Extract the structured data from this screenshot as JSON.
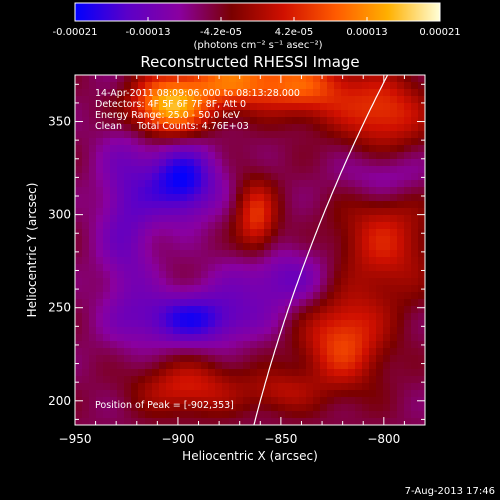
{
  "colorbar": {
    "tick_labels": [
      "-0.00021",
      "-0.00013",
      "-4.2e-05",
      "4.2e-05",
      "0.00013",
      "0.00021"
    ],
    "unit_label": "(photons cm⁻² s⁻¹ asec⁻²)",
    "range": [
      -0.00021,
      0.00021
    ],
    "colors": [
      "#0000ff",
      "#5b00c8",
      "#8a00a0",
      "#7a0000",
      "#d01000",
      "#ff5a00",
      "#ffb000",
      "#ffffd8"
    ]
  },
  "chart_data": {
    "type": "heatmap",
    "title": "Reconstructed RHESSI Image",
    "xlabel": "Heliocentric X (arcsec)",
    "ylabel": "Heliocentric Y (arcsec)",
    "xlim": [
      -950,
      -780
    ],
    "ylim": [
      187,
      375
    ],
    "x_ticks": [
      -950,
      -900,
      -850,
      -800
    ],
    "x_tick_labels": [
      "−950",
      "−900",
      "−850",
      "−800"
    ],
    "y_ticks": [
      200,
      250,
      300,
      350
    ],
    "y_tick_labels": [
      "200",
      "250",
      "300",
      "350"
    ],
    "annotations": [
      "14-Apr-2011 08:09:06.000 to 08:13:28.000",
      "Detectors: 4F 5F 6F 7F 8F, Att 0",
      "Energy Range: 25.0 - 50.0 keV",
      "Clean     Total Counts: 4.76E+03"
    ],
    "peak_label": "Position of Peak = [-902,353]",
    "peak_position": [
      -902,
      353
    ],
    "limb": true,
    "features": [
      {
        "x": -905,
        "y": 358,
        "value": 1.0,
        "sigma_x": 14,
        "sigma_y": 11
      },
      {
        "x": -870,
        "y": 372,
        "value": 0.75,
        "sigma_x": 20,
        "sigma_y": 10
      },
      {
        "x": -835,
        "y": 368,
        "value": 0.5,
        "sigma_x": 15,
        "sigma_y": 12
      },
      {
        "x": -800,
        "y": 355,
        "value": 0.55,
        "sigma_x": 15,
        "sigma_y": 14
      },
      {
        "x": -862,
        "y": 298,
        "value": 0.55,
        "sigma_x": 7,
        "sigma_y": 14
      },
      {
        "x": -800,
        "y": 285,
        "value": 0.45,
        "sigma_x": 16,
        "sigma_y": 22
      },
      {
        "x": -820,
        "y": 232,
        "value": 0.6,
        "sigma_x": 14,
        "sigma_y": 18
      },
      {
        "x": -895,
        "y": 207,
        "value": 0.45,
        "sigma_x": 18,
        "sigma_y": 10
      },
      {
        "x": -850,
        "y": 205,
        "value": 0.3,
        "sigma_x": 12,
        "sigma_y": 8
      },
      {
        "x": -898,
        "y": 318,
        "value": -0.7,
        "sigma_x": 12,
        "sigma_y": 14
      },
      {
        "x": -893,
        "y": 244,
        "value": -0.6,
        "sigma_x": 20,
        "sigma_y": 10
      },
      {
        "x": -850,
        "y": 265,
        "value": -0.35,
        "sigma_x": 20,
        "sigma_y": 12
      },
      {
        "x": -925,
        "y": 300,
        "value": -0.35,
        "sigma_x": 10,
        "sigma_y": 40
      },
      {
        "x": -800,
        "y": 320,
        "value": -0.3,
        "sigma_x": 15,
        "sigma_y": 10
      }
    ]
  },
  "footer": {
    "timestamp": "7-Aug-2013 17:46"
  }
}
